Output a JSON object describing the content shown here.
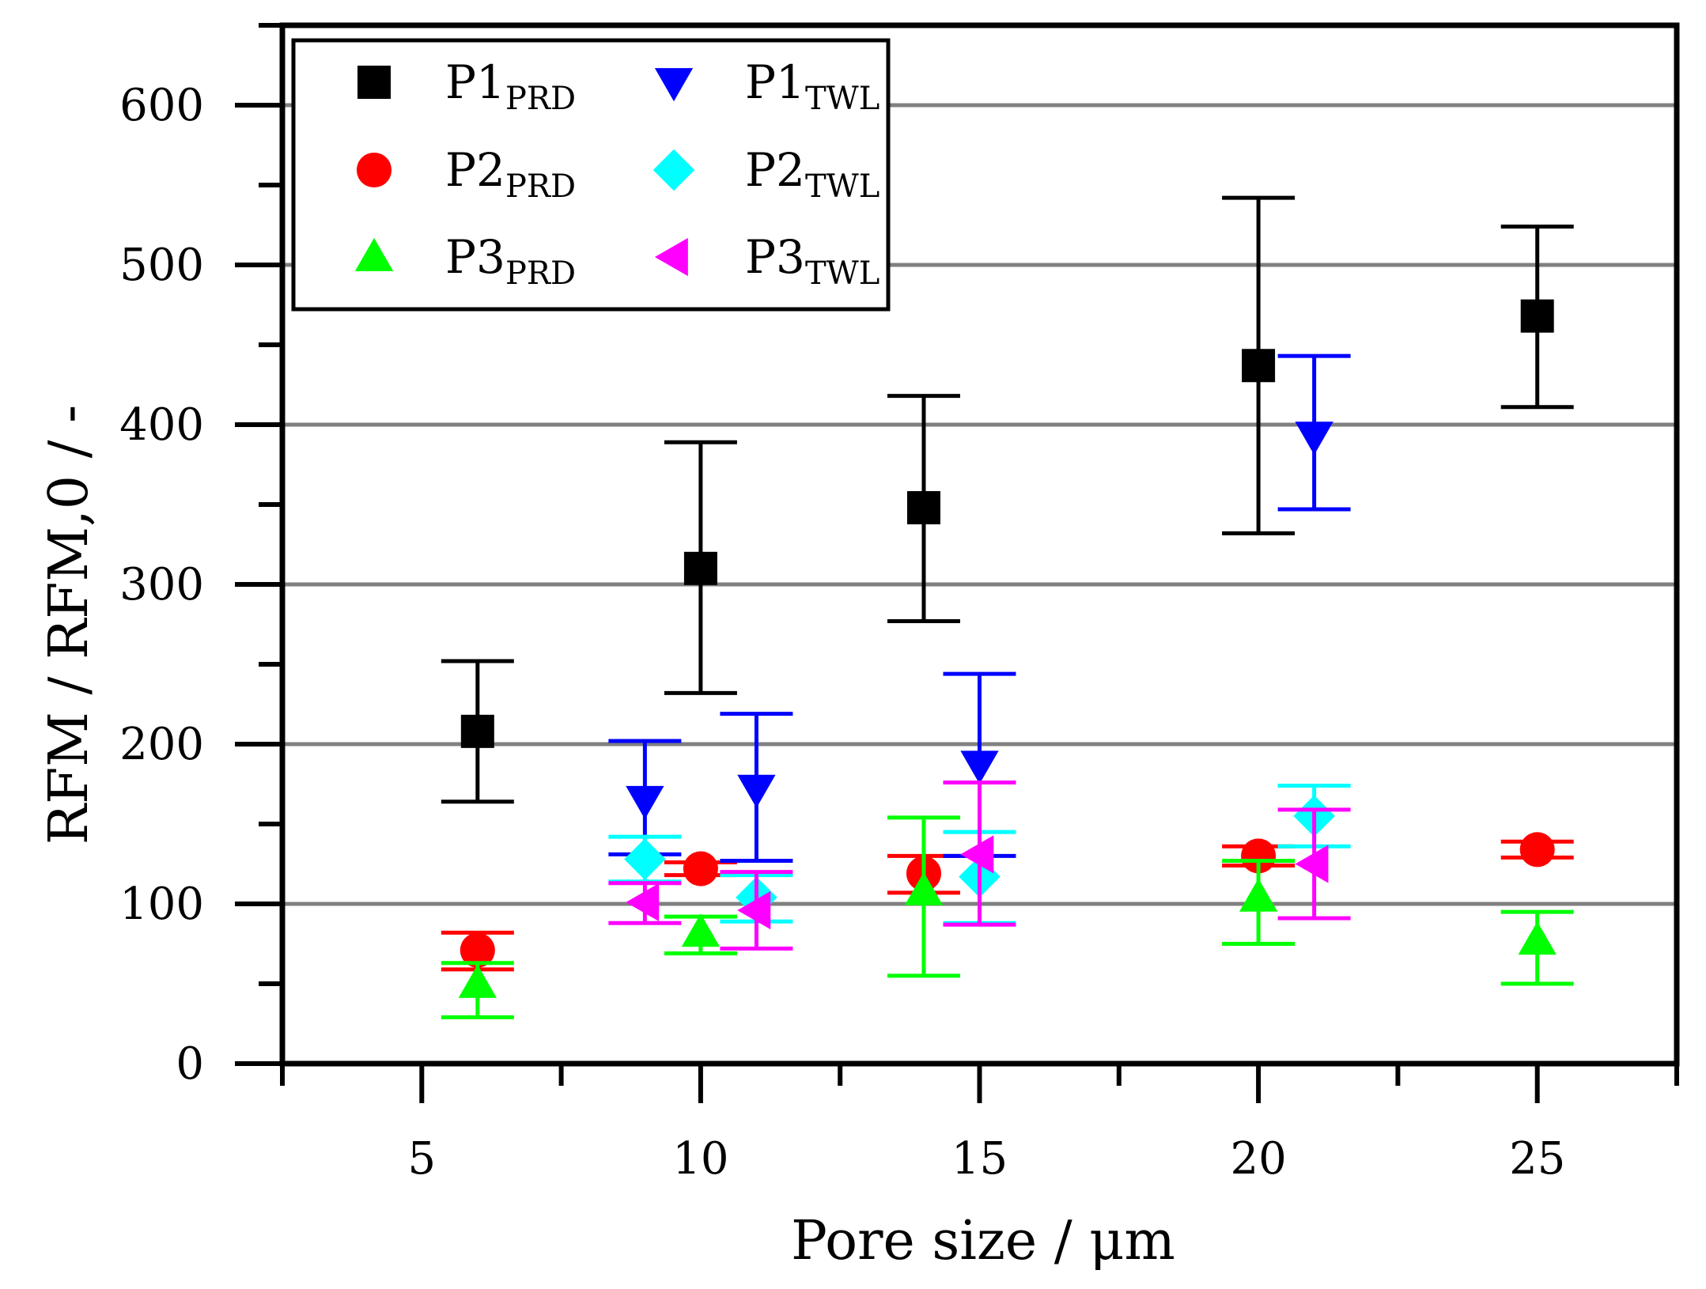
{
  "chart_data": {
    "type": "scatter",
    "xlabel": "Pore size / μm",
    "ylabel": "RFM / RFM,0 / -",
    "xlim": [
      2.5,
      27.5
    ],
    "ylim": [
      0,
      650
    ],
    "x_ticks": [
      5,
      10,
      15,
      20,
      25
    ],
    "y_ticks": [
      0,
      100,
      200,
      300,
      400,
      500,
      600
    ],
    "grid": "horizontal",
    "legend_position": "top-left",
    "series": [
      {
        "name": "P1",
        "subscript": "PRD",
        "marker": "square",
        "color": "#000000",
        "points": [
          {
            "x": 6,
            "y": 208,
            "lo": 164,
            "hi": 252
          },
          {
            "x": 10,
            "y": 310,
            "lo": 232,
            "hi": 389
          },
          {
            "x": 14,
            "y": 348,
            "lo": 277,
            "hi": 418
          },
          {
            "x": 20,
            "y": 437,
            "lo": 332,
            "hi": 542
          },
          {
            "x": 25,
            "y": 468,
            "lo": 411,
            "hi": 524
          }
        ]
      },
      {
        "name": "P2",
        "subscript": "PRD",
        "marker": "circle",
        "color": "#ff0000",
        "points": [
          {
            "x": 6,
            "y": 71,
            "lo": 59,
            "hi": 82
          },
          {
            "x": 10,
            "y": 122,
            "lo": 118,
            "hi": 126
          },
          {
            "x": 14,
            "y": 119,
            "lo": 107,
            "hi": 130
          },
          {
            "x": 20,
            "y": 130,
            "lo": 124,
            "hi": 136
          },
          {
            "x": 25,
            "y": 134,
            "lo": 129,
            "hi": 139
          }
        ]
      },
      {
        "name": "P3",
        "subscript": "PRD",
        "marker": "triangle-up",
        "color": "#00ff00",
        "points": [
          {
            "x": 6,
            "y": 50,
            "lo": 29,
            "hi": 63
          },
          {
            "x": 10,
            "y": 82,
            "lo": 69,
            "hi": 92
          },
          {
            "x": 14,
            "y": 108,
            "lo": 55,
            "hi": 154
          },
          {
            "x": 20,
            "y": 104,
            "lo": 75,
            "hi": 127
          },
          {
            "x": 25,
            "y": 77,
            "lo": 50,
            "hi": 95
          }
        ]
      },
      {
        "name": "P1",
        "subscript": "TWL",
        "marker": "triangle-down",
        "color": "#0000ff",
        "points": [
          {
            "x": 9,
            "y": 165,
            "lo": 131,
            "hi": 202
          },
          {
            "x": 11,
            "y": 172,
            "lo": 127,
            "hi": 219
          },
          {
            "x": 15,
            "y": 187,
            "lo": 130,
            "hi": 244
          },
          {
            "x": 21,
            "y": 393,
            "lo": 347,
            "hi": 443
          }
        ]
      },
      {
        "name": "P2",
        "subscript": "TWL",
        "marker": "diamond",
        "color": "#00ffff",
        "points": [
          {
            "x": 9,
            "y": 128,
            "lo": 114,
            "hi": 142
          },
          {
            "x": 11,
            "y": 104,
            "lo": 89,
            "hi": 118
          },
          {
            "x": 15,
            "y": 117,
            "lo": 88,
            "hi": 145
          },
          {
            "x": 21,
            "y": 155,
            "lo": 136,
            "hi": 174
          }
        ]
      },
      {
        "name": "P3",
        "subscript": "TWL",
        "marker": "triangle-left",
        "color": "#ff00ff",
        "points": [
          {
            "x": 9,
            "y": 101,
            "lo": 88,
            "hi": 113
          },
          {
            "x": 11,
            "y": 96,
            "lo": 72,
            "hi": 120
          },
          {
            "x": 15,
            "y": 131,
            "lo": 87,
            "hi": 176
          },
          {
            "x": 21,
            "y": 125,
            "lo": 91,
            "hi": 159
          }
        ]
      }
    ]
  }
}
